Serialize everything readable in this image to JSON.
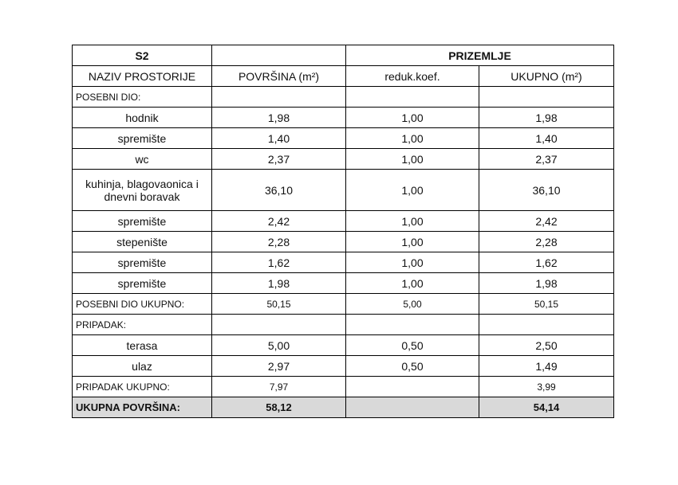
{
  "table": {
    "title": "S2",
    "floor": "PRIZEMLJE",
    "headers": [
      "NAZIV PROSTORIJE",
      "POVRŠINA (m²)",
      "reduk.koef.",
      "UKUPNO (m²)"
    ],
    "posebni_dio": {
      "label": "POSEBNI DIO:",
      "rows": [
        [
          "hodnik",
          "1,98",
          "1,00",
          "1,98"
        ],
        [
          "spremište",
          "1,40",
          "1,00",
          "1,40"
        ],
        [
          "wc",
          "2,37",
          "1,00",
          "2,37"
        ],
        [
          "kuhinja, blagovaonica i dnevni boravak",
          "36,10",
          "1,00",
          "36,10"
        ],
        [
          "spremište",
          "2,42",
          "1,00",
          "2,42"
        ],
        [
          "stepenište",
          "2,28",
          "1,00",
          "2,28"
        ],
        [
          "spremište",
          "1,62",
          "1,00",
          "1,62"
        ],
        [
          "spremište",
          "1,98",
          "1,00",
          "1,98"
        ]
      ],
      "total": {
        "label": "POSEBNI DIO UKUPNO:",
        "povrsina": "50,15",
        "koef": "5,00",
        "ukupno": "50,15"
      }
    },
    "pripadak": {
      "label": "PRIPADAK:",
      "rows": [
        [
          "terasa",
          "5,00",
          "0,50",
          "2,50"
        ],
        [
          "ulaz",
          "2,97",
          "0,50",
          "1,49"
        ]
      ],
      "total": {
        "label": "PRIPADAK UKUPNO:",
        "povrsina": "7,97",
        "ukupno": "3,99"
      }
    },
    "grand_total": {
      "label": "UKUPNA POVRŠINA:",
      "povrsina": "58,12",
      "ukupno": "54,14"
    }
  }
}
